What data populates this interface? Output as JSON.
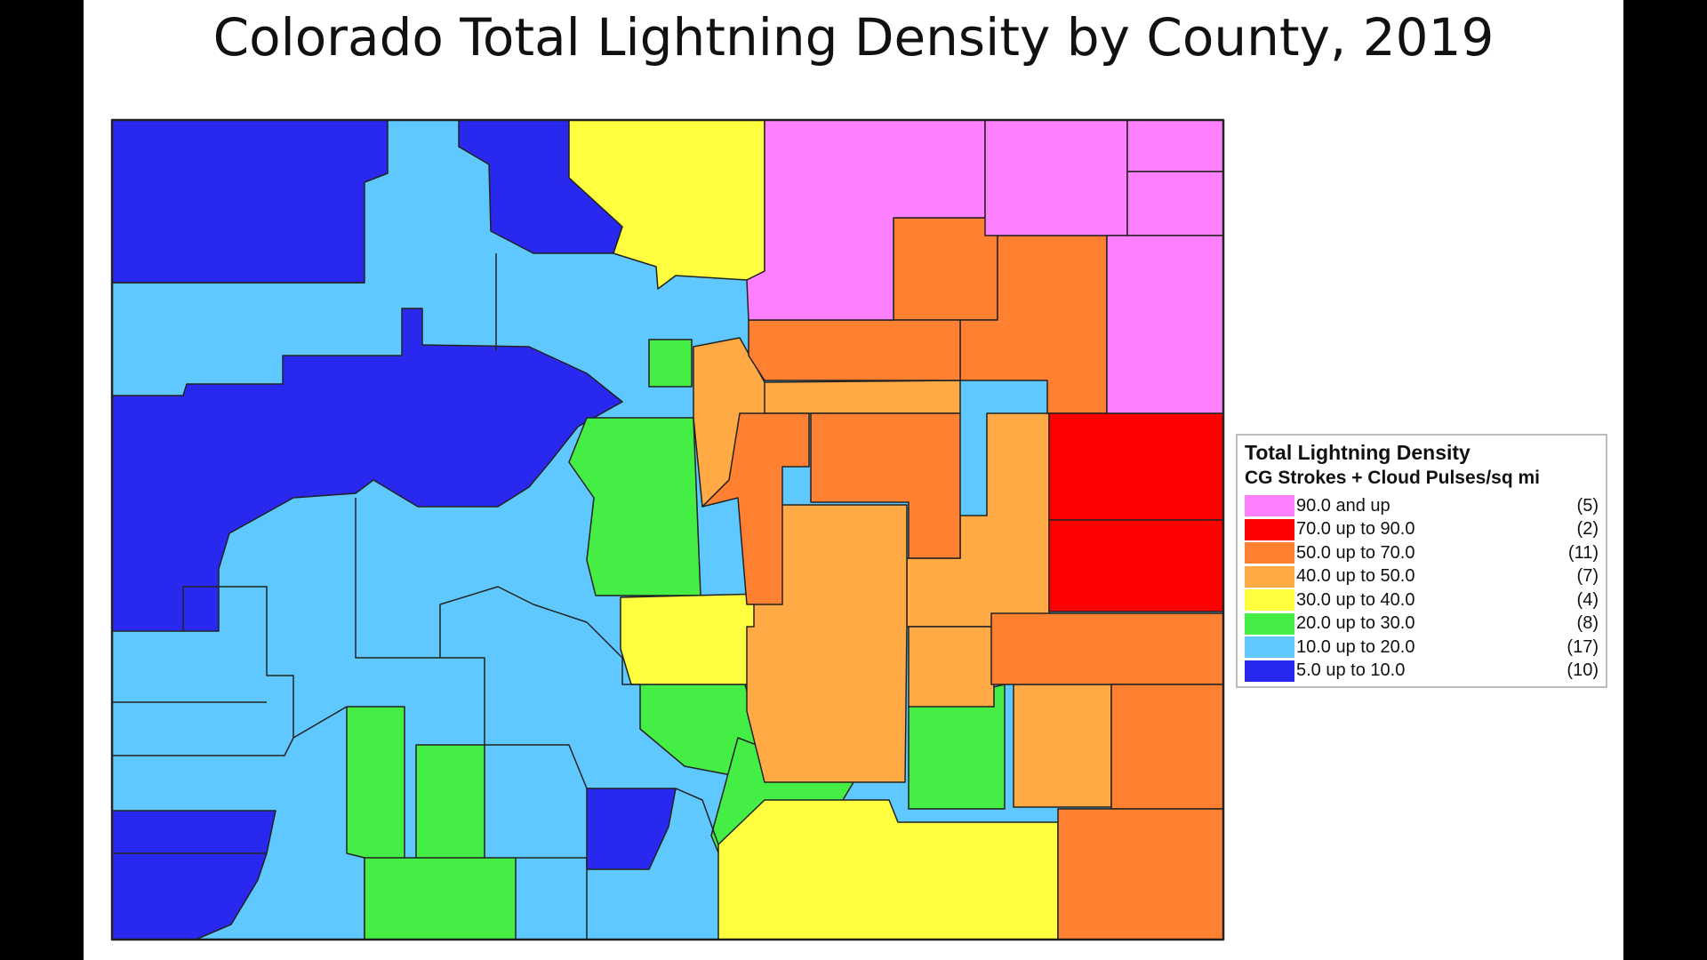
{
  "title": "Colorado Total Lightning Density by County, 2019",
  "legend": {
    "title": "Total Lightning Density",
    "subtitle": "CG Strokes + Cloud Pulses/sq mi",
    "classes": [
      {
        "label": "90.0 and up",
        "count": "(5)",
        "color": "#ff80ff"
      },
      {
        "label": "70.0 up to 90.0",
        "count": "(2)",
        "color": "#ff0000"
      },
      {
        "label": "50.0 up to 70.0",
        "count": "(11)",
        "color": "#ff8030"
      },
      {
        "label": "40.0 up to 50.0",
        "count": "(7)",
        "color": "#ffaa44"
      },
      {
        "label": "30.0 up to 40.0",
        "count": "(4)",
        "color": "#ffff40"
      },
      {
        "label": "20.0 up to 30.0",
        "count": "(8)",
        "color": "#44ee44"
      },
      {
        "label": "10.0 up to 20.0",
        "count": "(17)",
        "color": "#5ec8ff"
      },
      {
        "label": "5.0 up to 10.0",
        "count": "(10)",
        "color": "#2828ee"
      }
    ]
  }
}
